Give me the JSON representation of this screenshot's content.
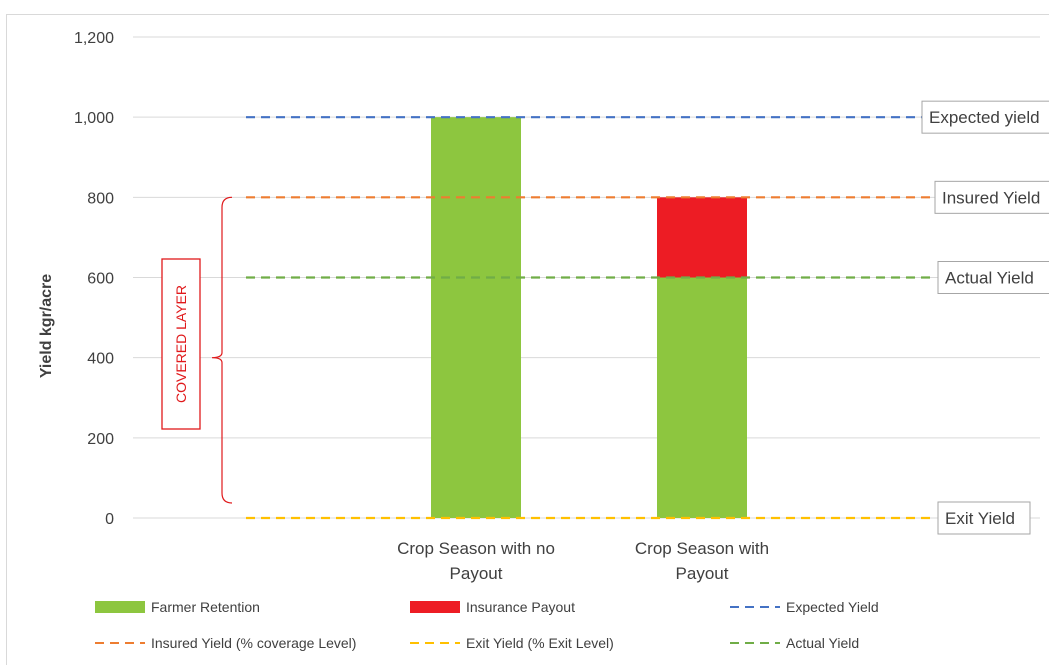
{
  "chart_data": {
    "type": "bar",
    "stacked": true,
    "ylabel": "Yield kgr/acre",
    "ylim": [
      0,
      1200
    ],
    "yticks": [
      "0",
      "200",
      "400",
      "600",
      "800",
      "1,000",
      "1,200"
    ],
    "ytick_values": [
      0,
      200,
      400,
      600,
      800,
      1000,
      1200
    ],
    "grid": true,
    "categories": [
      [
        "Crop Season with no",
        "Payout"
      ],
      [
        "Crop Season with",
        "Payout"
      ]
    ],
    "series": [
      {
        "name": "Farmer Retention",
        "color": "#8dc63f",
        "values": [
          1000,
          600
        ]
      },
      {
        "name": "Insurance Payout",
        "color": "#ed1c24",
        "values": [
          0,
          200
        ]
      }
    ],
    "reference_lines": [
      {
        "name": "Expected Yield",
        "legend": "Expected Yield",
        "box_label": "Expected yield",
        "value": 1000,
        "color": "#4472c4"
      },
      {
        "name": "Insured Yield",
        "legend": "Insured Yield (% coverage Level)",
        "box_label": "Insured Yield",
        "value": 800,
        "color": "#ed7d31"
      },
      {
        "name": "Actual Yield",
        "legend": "Actual Yield",
        "box_label": "Actual Yield",
        "value": 600,
        "color": "#70ad47"
      },
      {
        "name": "Exit Yield",
        "legend": "Exit Yield (% Exit Level)",
        "box_label": "Exit Yield",
        "value": 0,
        "color": "#ffc000"
      }
    ],
    "annotation": {
      "text": "COVERED LAYER",
      "from": 0,
      "to": 800,
      "color": "#e0191b"
    },
    "legend_position": "bottom"
  }
}
